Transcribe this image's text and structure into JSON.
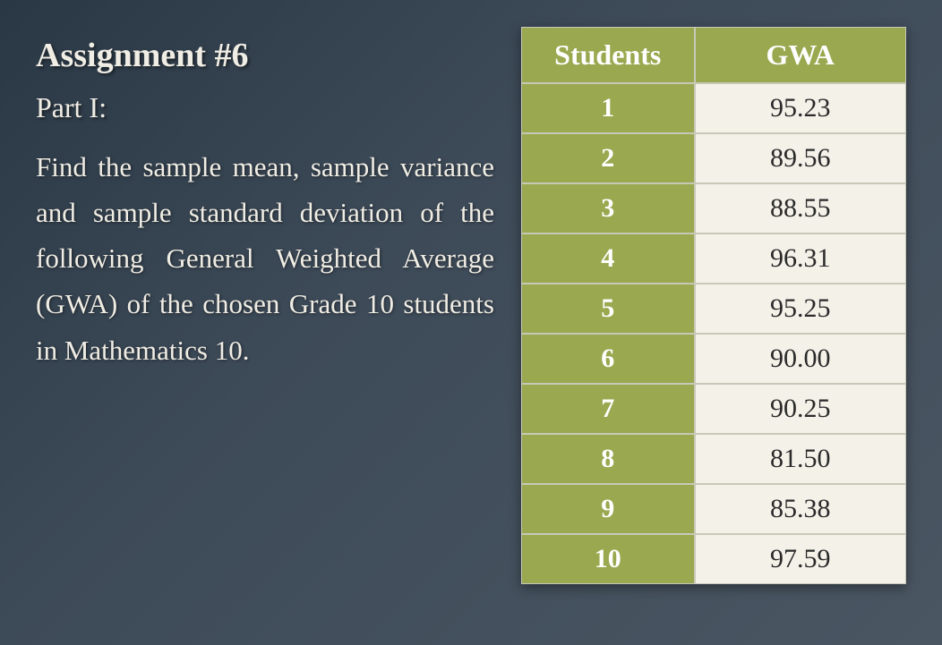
{
  "heading": {
    "title": "Assignment #6",
    "subtitle": "Part I:"
  },
  "body": "Find the sample mean, sample variance and sample standard deviation of the following General Weighted Average (GWA) of the chosen Grade 10 students in Mathematics 10.",
  "table": {
    "type": "table",
    "columns": [
      "Students",
      "GWA"
    ],
    "col_widths_pct": [
      45,
      55
    ],
    "header_bg": "#9aa84f",
    "header_fg": "#ffffff",
    "student_col_bg": "#9aa84f",
    "student_col_fg": "#ffffff",
    "gwa_col_bg": "#f3f1e8",
    "gwa_col_fg": "#2a2a2a",
    "border_color": "#c8c8b8",
    "header_fontsize": 32,
    "cell_fontsize": 30,
    "rows": [
      {
        "student": "1",
        "gwa": "95.23"
      },
      {
        "student": "2",
        "gwa": "89.56"
      },
      {
        "student": "3",
        "gwa": "88.55"
      },
      {
        "student": "4",
        "gwa": "96.31"
      },
      {
        "student": "5",
        "gwa": "95.25"
      },
      {
        "student": "6",
        "gwa": "90.00"
      },
      {
        "student": "7",
        "gwa": "90.25"
      },
      {
        "student": "8",
        "gwa": "81.50"
      },
      {
        "student": "9",
        "gwa": "85.38"
      },
      {
        "student": "10",
        "gwa": "97.59"
      }
    ]
  },
  "style": {
    "slide_bg_gradient": [
      "#2a3845",
      "#3d4a58",
      "#4a5662"
    ],
    "text_color": "#f0ede4",
    "title_fontsize": 38,
    "subtitle_fontsize": 32,
    "body_fontsize": 31,
    "font_family": "Georgia, serif"
  }
}
